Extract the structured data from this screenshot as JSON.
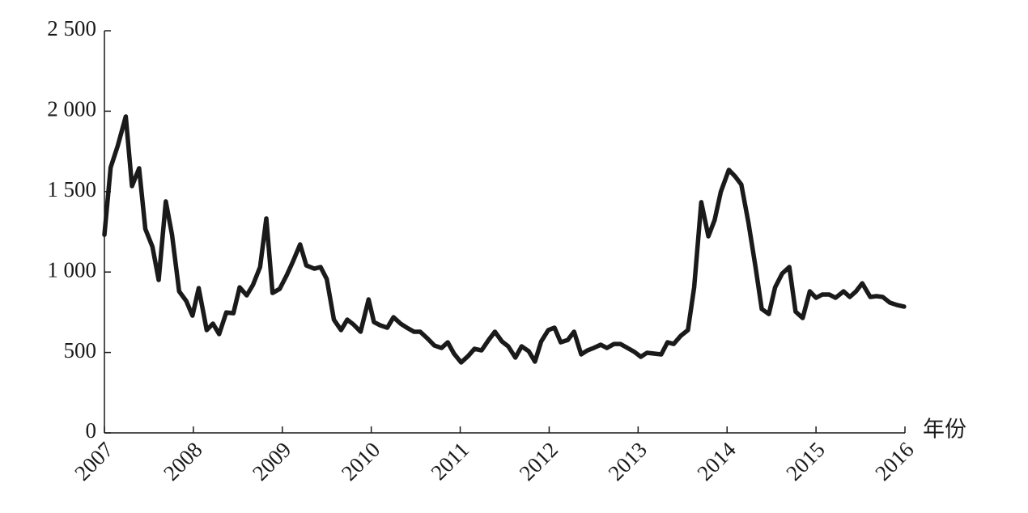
{
  "chart_data": {
    "type": "line",
    "x_label": "年份",
    "x": [
      2007.0,
      2007.07,
      2007.15,
      2007.24,
      2007.31,
      2007.39,
      2007.46,
      2007.54,
      2007.61,
      2007.69,
      2007.76,
      2007.84,
      2007.92,
      2007.99,
      2008.06,
      2008.15,
      2008.22,
      2008.29,
      2008.37,
      2008.45,
      2008.52,
      2008.6,
      2008.67,
      2008.75,
      2008.82,
      2008.89,
      2008.97,
      2009.05,
      2009.12,
      2009.2,
      2009.27,
      2009.36,
      2009.43,
      2009.5,
      2009.58,
      2009.66,
      2009.73,
      2009.8,
      2009.88,
      2009.97,
      2010.03,
      2010.1,
      2010.18,
      2010.25,
      2010.33,
      2010.4,
      2010.48,
      2010.55,
      2010.63,
      2010.71,
      2010.79,
      2010.86,
      2010.93,
      2011.01,
      2011.09,
      2011.16,
      2011.24,
      2011.32,
      2011.39,
      2011.47,
      2011.54,
      2011.62,
      2011.69,
      2011.77,
      2011.84,
      2011.91,
      2011.99,
      2012.06,
      2012.13,
      2012.21,
      2012.28,
      2012.36,
      2012.43,
      2012.5,
      2012.58,
      2012.65,
      2012.73,
      2012.8,
      2012.88,
      2012.96,
      2013.03,
      2013.1,
      2013.18,
      2013.26,
      2013.33,
      2013.4,
      2013.48,
      2013.56,
      2013.63,
      2013.71,
      2013.79,
      2013.86,
      2013.93,
      2014.02,
      2014.09,
      2014.16,
      2014.24,
      2014.32,
      2014.39,
      2014.47,
      2014.54,
      2014.62,
      2014.7,
      2014.77,
      2014.85,
      2014.93,
      2015.0,
      2015.07,
      2015.15,
      2015.22,
      2015.31,
      2015.38,
      2015.45,
      2015.52,
      2015.61,
      2015.68,
      2015.75,
      2015.83,
      2015.91,
      2015.99
    ],
    "series": [
      {
        "color": "#1a1a1a",
        "values": [
          1232,
          1650,
          1785,
          1967,
          1534,
          1645,
          1268,
          1157,
          951,
          1439,
          1232,
          880,
          820,
          729,
          900,
          639,
          679,
          614,
          749,
          744,
          905,
          855,
          920,
          1031,
          1333,
          870,
          895,
          981,
          1066,
          1172,
          1041,
          1021,
          1031,
          956,
          704,
          639,
          704,
          674,
          629,
          830,
          689,
          669,
          654,
          719,
          679,
          654,
          629,
          629,
          588,
          543,
          528,
          563,
          493,
          438,
          478,
          523,
          513,
          578,
          629,
          568,
          538,
          468,
          538,
          508,
          443,
          568,
          639,
          654,
          563,
          578,
          629,
          488,
          513,
          528,
          548,
          528,
          553,
          553,
          528,
          503,
          473,
          498,
          493,
          488,
          563,
          553,
          604,
          639,
          905,
          1434,
          1222,
          1323,
          1499,
          1635,
          1595,
          1544,
          1308,
          1031,
          770,
          739,
          905,
          991,
          1031,
          754,
          714,
          880,
          840,
          860,
          860,
          840,
          880,
          845,
          880,
          930,
          845,
          850,
          845,
          810,
          795,
          785
        ]
      }
    ],
    "xlim": [
      2007,
      2016
    ],
    "xticks": [
      2007,
      2008,
      2009,
      2010,
      2011,
      2012,
      2013,
      2014,
      2015,
      2016
    ],
    "ylim": [
      0,
      2500
    ],
    "yticks": [
      0,
      500,
      {
        "value": 1000,
        "label": "1 000"
      },
      {
        "value": 1500,
        "label": "1 500"
      },
      {
        "value": 2000,
        "label": "2 000"
      },
      {
        "value": 2500,
        "label": "2 500"
      }
    ]
  }
}
